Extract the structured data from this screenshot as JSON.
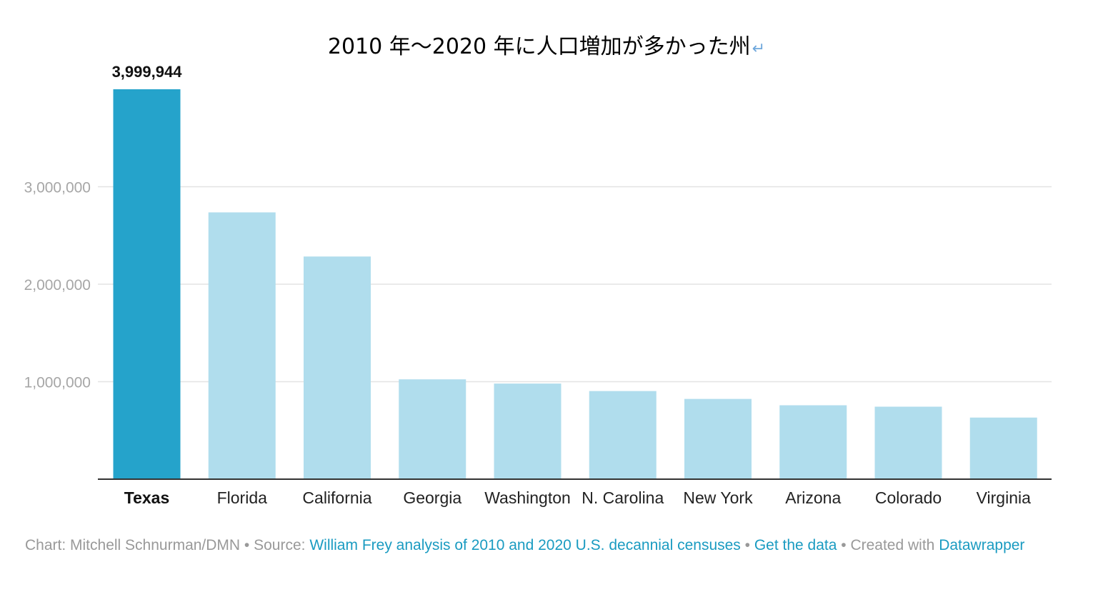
{
  "chart_data": {
    "type": "bar",
    "title": "2010 年～2020 年に人口増加が多かった州",
    "title_mark": "↵",
    "categories": [
      "Texas",
      "Florida",
      "California",
      "Georgia",
      "Washington",
      "N. Carolina",
      "New York",
      "Arizona",
      "Colorado",
      "Virginia"
    ],
    "values": [
      3999944,
      2736877,
      2284267,
      1024255,
      980741,
      903905,
      823147,
      758106,
      743750,
      631920
    ],
    "highlight_index": 0,
    "data_labels": {
      "0": "3,999,944"
    },
    "yticks": [
      1000000,
      2000000,
      3000000
    ],
    "ytick_labels": [
      "1,000,000",
      "2,000,000",
      "3,000,000"
    ],
    "ylim": [
      0,
      4000000
    ],
    "grid": true,
    "colors": {
      "highlight": "#25a3cb",
      "bar": "#b0dded",
      "grid": "#e3e3e3",
      "axis": "#333333"
    }
  },
  "footer": {
    "chart_prefix": "Chart: Mitchell Schnurman/DMN",
    "sep1": " • Source: ",
    "source_link": "William Frey analysis of 2010 and 2020 U.S. decannial censuses",
    "sep2": " • ",
    "data_link": "Get the data",
    "sep3": " • Created with ",
    "tool_link": "Datawrapper"
  }
}
